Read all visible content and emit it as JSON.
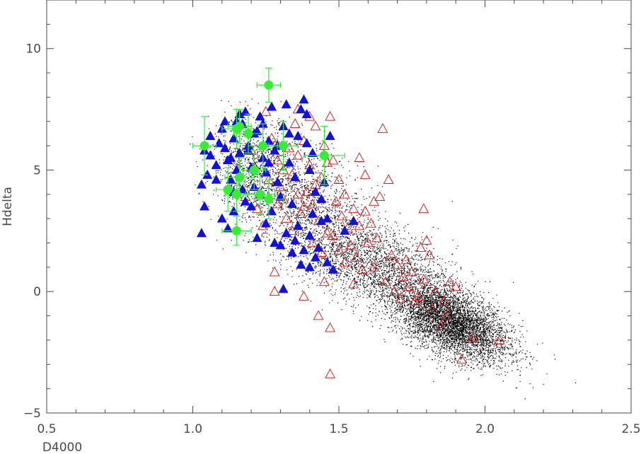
{
  "chart_data": {
    "type": "scatter",
    "title": "",
    "xlabel": "D4000",
    "ylabel": "Hdelta",
    "xlim": [
      0.5,
      2.5
    ],
    "ylim": [
      -5,
      12
    ],
    "grid": false,
    "x_ticks": [
      0.5,
      1.0,
      1.5,
      2.0,
      2.5
    ],
    "x_tick_labels": [
      "0.5",
      "1.0",
      "1.5",
      "2.0",
      "2.5"
    ],
    "y_ticks": [
      -5,
      0,
      5,
      10
    ],
    "y_tick_labels": [
      "−5",
      "0",
      "5",
      "10"
    ],
    "series": [
      {
        "marker": "dot",
        "color": "#000000",
        "description_of_distribution": "dense cloud of small points",
        "components": [
          {
            "cx": 1.88,
            "cy": -1.25,
            "sx": 0.1,
            "sy": 0.8,
            "rho": -0.55,
            "n": 5200
          },
          {
            "cx": 1.6,
            "cy": 1.2,
            "sx": 0.15,
            "sy": 1.0,
            "rho": -0.55,
            "n": 2600
          },
          {
            "cx": 1.35,
            "cy": 4.0,
            "sx": 0.12,
            "sy": 1.2,
            "rho": -0.4,
            "n": 1500
          },
          {
            "cx": 1.2,
            "cy": 5.3,
            "sx": 0.07,
            "sy": 0.9,
            "rho": 0.0,
            "n": 700
          }
        ]
      },
      {
        "marker": "filled-triangle",
        "color": "#1010e0",
        "points": [
          [
            1.03,
            2.4
          ],
          [
            1.04,
            3.5
          ],
          [
            1.03,
            4.4
          ],
          [
            1.05,
            4.8
          ],
          [
            1.06,
            5.6
          ],
          [
            1.08,
            5.2
          ],
          [
            1.09,
            6.1
          ],
          [
            1.1,
            6.7
          ],
          [
            1.11,
            5.9
          ],
          [
            1.12,
            5.4
          ],
          [
            1.13,
            4.6
          ],
          [
            1.14,
            6.3
          ],
          [
            1.15,
            7.0
          ],
          [
            1.16,
            5.7
          ],
          [
            1.17,
            6.9
          ],
          [
            1.18,
            7.4
          ],
          [
            1.19,
            6.0
          ],
          [
            1.2,
            5.1
          ],
          [
            1.21,
            4.3
          ],
          [
            1.22,
            6.6
          ],
          [
            1.23,
            7.2
          ],
          [
            1.24,
            5.5
          ],
          [
            1.25,
            4.9
          ],
          [
            1.26,
            6.2
          ],
          [
            1.27,
            7.6
          ],
          [
            1.28,
            5.8
          ],
          [
            1.29,
            4.5
          ],
          [
            1.3,
            3.9
          ],
          [
            1.31,
            6.8
          ],
          [
            1.32,
            7.7
          ],
          [
            1.33,
            5.3
          ],
          [
            1.34,
            3.6
          ],
          [
            1.35,
            4.7
          ],
          [
            1.36,
            6.4
          ],
          [
            1.37,
            7.5
          ],
          [
            1.38,
            7.9
          ],
          [
            1.39,
            6.1
          ],
          [
            1.4,
            5.0
          ],
          [
            1.41,
            3.2
          ],
          [
            1.42,
            4.1
          ],
          [
            1.1,
            3.0
          ],
          [
            1.12,
            2.6
          ],
          [
            1.14,
            3.3
          ],
          [
            1.18,
            3.7
          ],
          [
            1.22,
            2.2
          ],
          [
            1.25,
            2.8
          ],
          [
            1.28,
            2.0
          ],
          [
            1.3,
            1.9
          ],
          [
            1.32,
            2.4
          ],
          [
            1.34,
            1.6
          ],
          [
            1.36,
            2.7
          ],
          [
            1.38,
            1.7
          ],
          [
            1.4,
            2.3
          ],
          [
            1.42,
            1.4
          ],
          [
            1.44,
            2.9
          ],
          [
            1.46,
            1.2
          ],
          [
            1.48,
            0.9
          ],
          [
            1.31,
            0.1
          ],
          [
            1.37,
            1.1
          ],
          [
            1.43,
            1.8
          ],
          [
            1.46,
            3.0
          ],
          [
            1.47,
            6.4
          ],
          [
            1.44,
            3.8
          ],
          [
            1.4,
            1.0
          ],
          [
            1.52,
            2.5
          ],
          [
            1.55,
            2.9
          ],
          [
            1.15,
            5.0
          ],
          [
            1.17,
            4.2
          ],
          [
            1.19,
            5.8
          ],
          [
            1.21,
            6.5
          ],
          [
            1.23,
            4.0
          ],
          [
            1.26,
            5.3
          ],
          [
            1.29,
            6.0
          ],
          [
            1.06,
            6.4
          ],
          [
            1.08,
            4.6
          ],
          [
            1.04,
            5.8
          ],
          [
            1.11,
            7.0
          ],
          [
            1.16,
            7.3
          ],
          [
            1.24,
            6.9
          ],
          [
            1.33,
            6.5
          ],
          [
            1.39,
            7.3
          ],
          [
            1.27,
            3.3
          ],
          [
            1.2,
            3.5
          ],
          [
            1.14,
            4.1
          ],
          [
            1.13,
            5.5
          ],
          [
            1.35,
            2.1
          ],
          [
            1.41,
            5.7
          ],
          [
            1.45,
            4.5
          ]
        ]
      },
      {
        "marker": "open-triangle",
        "color": "#e02020",
        "points": [
          [
            1.4,
            7.2
          ],
          [
            1.42,
            6.8
          ],
          [
            1.45,
            6.0
          ],
          [
            1.48,
            5.4
          ],
          [
            1.5,
            4.6
          ],
          [
            1.52,
            4.0
          ],
          [
            1.55,
            3.4
          ],
          [
            1.57,
            5.5
          ],
          [
            1.59,
            4.8
          ],
          [
            1.61,
            2.8
          ],
          [
            1.63,
            2.2
          ],
          [
            1.64,
            3.9
          ],
          [
            1.65,
            6.7
          ],
          [
            1.67,
            4.6
          ],
          [
            1.68,
            1.5
          ],
          [
            1.7,
            1.1
          ],
          [
            1.72,
            0.6
          ],
          [
            1.74,
            0.2
          ],
          [
            1.76,
            -0.4
          ],
          [
            1.78,
            1.8
          ],
          [
            1.79,
            3.4
          ],
          [
            1.8,
            2.1
          ],
          [
            1.81,
            1.5
          ],
          [
            1.82,
            -0.7
          ],
          [
            1.85,
            -1.4
          ],
          [
            1.87,
            -1.0
          ],
          [
            1.9,
            0.2
          ],
          [
            1.96,
            -1.9
          ],
          [
            2.05,
            -2.0
          ],
          [
            1.47,
            7.2
          ],
          [
            1.28,
            0.8
          ],
          [
            1.28,
            0.0
          ],
          [
            1.38,
            -0.2
          ],
          [
            1.43,
            -1.0
          ],
          [
            1.47,
            -1.5
          ],
          [
            1.47,
            -3.4
          ],
          [
            1.45,
            0.4
          ],
          [
            1.36,
            7.5
          ],
          [
            1.35,
            6.9
          ],
          [
            1.33,
            5.9
          ],
          [
            1.31,
            5.0
          ],
          [
            1.3,
            4.3
          ],
          [
            1.29,
            3.6
          ],
          [
            1.32,
            3.0
          ],
          [
            1.34,
            2.5
          ],
          [
            1.37,
            3.2
          ],
          [
            1.39,
            4.1
          ],
          [
            1.41,
            3.6
          ],
          [
            1.43,
            2.9
          ],
          [
            1.44,
            4.7
          ],
          [
            1.46,
            5.3
          ],
          [
            1.49,
            3.7
          ],
          [
            1.51,
            3.1
          ],
          [
            1.53,
            2.6
          ],
          [
            1.54,
            1.9
          ],
          [
            1.56,
            1.4
          ],
          [
            1.58,
            0.9
          ],
          [
            1.6,
            2.0
          ],
          [
            1.62,
            1.0
          ],
          [
            1.66,
            0.4
          ],
          [
            1.69,
            0.0
          ],
          [
            1.71,
            -0.3
          ],
          [
            1.73,
            1.3
          ],
          [
            1.75,
            0.8
          ],
          [
            1.77,
            -0.2
          ],
          [
            1.79,
            0.5
          ],
          [
            1.83,
            0.0
          ],
          [
            1.86,
            -0.4
          ],
          [
            1.88,
            0.4
          ],
          [
            1.92,
            -2.8
          ],
          [
            1.24,
            2.7
          ],
          [
            1.22,
            3.4
          ],
          [
            1.2,
            5.8
          ],
          [
            1.25,
            7.4
          ],
          [
            1.27,
            6.3
          ],
          [
            1.26,
            4.6
          ],
          [
            1.18,
            3.9
          ],
          [
            1.36,
            5.6
          ],
          [
            1.38,
            6.2
          ],
          [
            1.4,
            5.2
          ],
          [
            1.42,
            4.4
          ],
          [
            1.48,
            2.3
          ],
          [
            1.5,
            1.7
          ],
          [
            1.52,
            1.2
          ],
          [
            1.55,
            0.3
          ],
          [
            1.57,
            2.7
          ],
          [
            1.59,
            3.3
          ],
          [
            1.62,
            3.7
          ],
          [
            1.34,
            4.8
          ],
          [
            1.36,
            4.0
          ],
          [
            1.38,
            3.5
          ],
          [
            1.41,
            2.0
          ],
          [
            1.44,
            1.6
          ],
          [
            1.46,
            2.4
          ],
          [
            1.31,
            3.8
          ],
          [
            1.29,
            5.4
          ]
        ]
      },
      {
        "marker": "filled-circle-errorbars",
        "color": "#33ee33",
        "points": [
          {
            "x": 1.26,
            "y": 8.5,
            "xerr": 0.04,
            "yerr": 0.7
          },
          {
            "x": 1.15,
            "y": 6.7,
            "xerr": 0.05,
            "yerr": 0.8
          },
          {
            "x": 1.16,
            "y": 6.8,
            "xerr": 0.04,
            "yerr": 0.7
          },
          {
            "x": 1.19,
            "y": 6.5,
            "xerr": 0.05,
            "yerr": 0.8
          },
          {
            "x": 1.04,
            "y": 6.0,
            "xerr": 0.04,
            "yerr": 1.2
          },
          {
            "x": 1.24,
            "y": 6.0,
            "xerr": 0.05,
            "yerr": 0.9
          },
          {
            "x": 1.31,
            "y": 6.0,
            "xerr": 0.05,
            "yerr": 1.0
          },
          {
            "x": 1.45,
            "y": 5.6,
            "xerr": 0.07,
            "yerr": 1.2
          },
          {
            "x": 1.21,
            "y": 5.0,
            "xerr": 0.04,
            "yerr": 0.8
          },
          {
            "x": 1.16,
            "y": 4.7,
            "xerr": 0.05,
            "yerr": 0.8
          },
          {
            "x": 1.12,
            "y": 4.2,
            "xerr": 0.04,
            "yerr": 0.9
          },
          {
            "x": 1.23,
            "y": 4.0,
            "xerr": 0.05,
            "yerr": 0.8
          },
          {
            "x": 1.26,
            "y": 3.8,
            "xerr": 0.05,
            "yerr": 0.8
          },
          {
            "x": 1.15,
            "y": 2.5,
            "xerr": 0.05,
            "yerr": 0.6
          },
          {
            "x": 1.15,
            "y": 4.0,
            "xerr": 0.04,
            "yerr": 0.7
          }
        ]
      }
    ]
  }
}
